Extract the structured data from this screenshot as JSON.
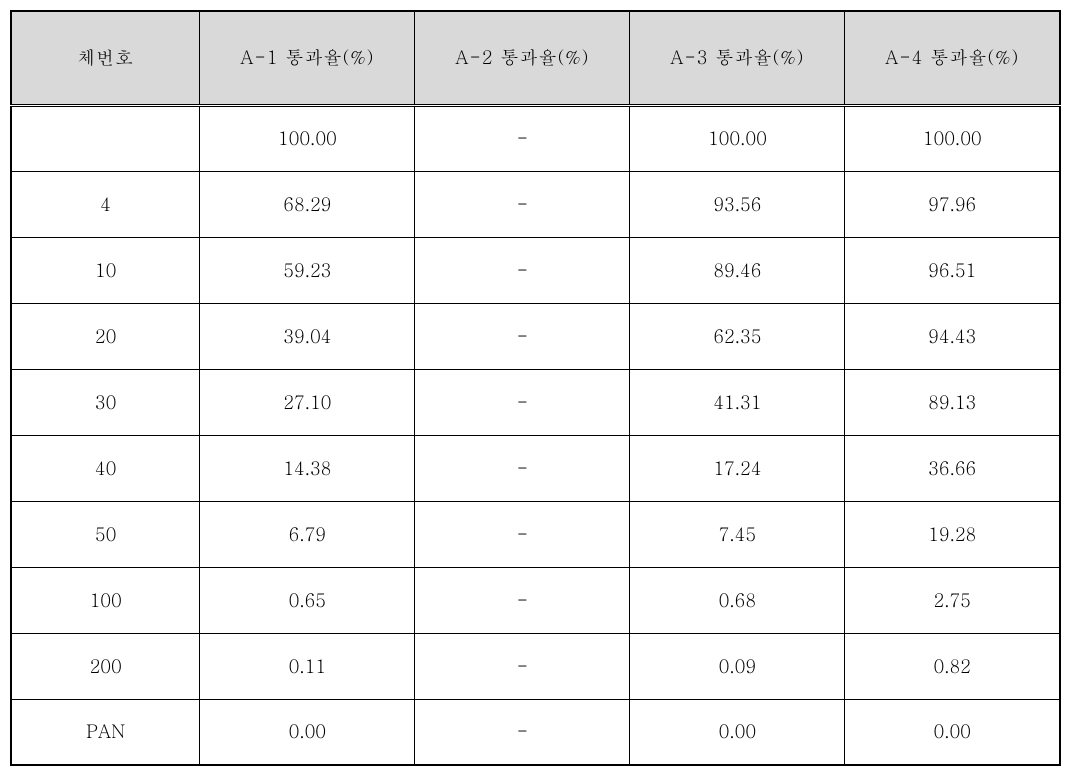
{
  "table": {
    "header_bg": "#d9d9d9",
    "border_color": "#000000",
    "background_color": "#ffffff",
    "font_family": "Batang, serif",
    "header_font_size": 18,
    "cell_font_size": 18,
    "columns": [
      "체번호",
      "A-1 통과율(%)",
      "A-2 통과율(%)",
      "A-3 통과율(%)",
      "A-4 통과율(%)"
    ],
    "rows": [
      [
        "",
        "100.00",
        "-",
        "100.00",
        "100.00"
      ],
      [
        "4",
        "68.29",
        "-",
        "93.56",
        "97.96"
      ],
      [
        "10",
        "59.23",
        "-",
        "89.46",
        "96.51"
      ],
      [
        "20",
        "39.04",
        "-",
        "62.35",
        "94.43"
      ],
      [
        "30",
        "27.10",
        "-",
        "41.31",
        "89.13"
      ],
      [
        "40",
        "14.38",
        "-",
        "17.24",
        "36.66"
      ],
      [
        "50",
        "6.79",
        "-",
        "7.45",
        "19.28"
      ],
      [
        "100",
        "0.65",
        "-",
        "0.68",
        "2.75"
      ],
      [
        "200",
        "0.11",
        "-",
        "0.09",
        "0.82"
      ],
      [
        "PAN",
        "0.00",
        "-",
        "0.00",
        "0.00"
      ]
    ]
  }
}
